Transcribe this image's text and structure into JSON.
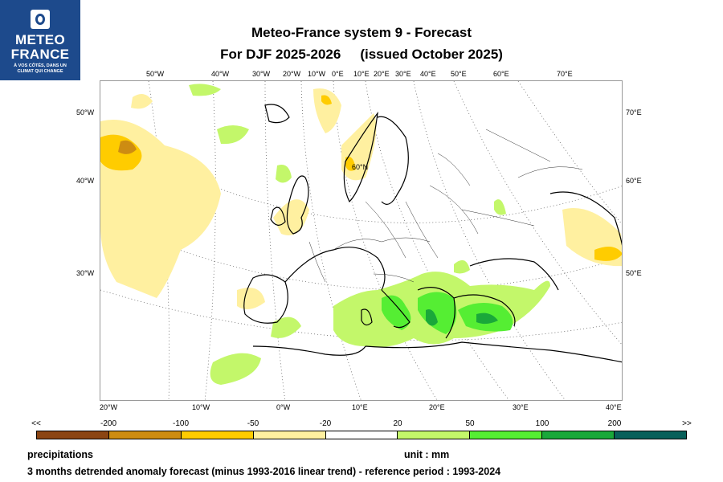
{
  "logo": {
    "line1": "METEO",
    "line2": "FRANCE",
    "tagline1": "À VOS CÔTÉS, DANS UN",
    "tagline2": "CLIMAT QUI CHANGE"
  },
  "title": {
    "line1": "Meteo-France system 9  -  Forecast",
    "line2_a": "For DJF 2025-2026",
    "line2_b": "(issued October 2025)"
  },
  "map_labels": {
    "top_lon": [
      "50°W",
      "40°W",
      "30°W",
      "20°W",
      "10°W",
      "0°E",
      "10°E",
      "20°E",
      "30°E",
      "40°E",
      "50°E",
      "60°E",
      "70°E"
    ],
    "bottom_lon": [
      "20°W",
      "10°W",
      "0°W",
      "10°E",
      "20°E",
      "30°E",
      "40°E"
    ],
    "left_lat": [
      "50°W",
      "40°W",
      "30°W"
    ],
    "right_lat": [
      "70°E",
      "60°E",
      "50°E"
    ],
    "inner": "60°N"
  },
  "legend": {
    "ticks": [
      "<<",
      "-200",
      "-100",
      "-50",
      "-20",
      "20",
      "50",
      "100",
      "200",
      ">>"
    ],
    "colors": [
      "#8b4513",
      "#cd8c12",
      "#ffcc00",
      "#fff0a0",
      "#ffffff",
      "#c3f76a",
      "#55ee33",
      "#1aa83a",
      "#08605a"
    ]
  },
  "footer": {
    "variable": "precipitations",
    "unit": "unit : mm",
    "description": "3 months detrended anomaly forecast (minus 1993-2016 linear trend) - reference period : 1993-2024"
  }
}
